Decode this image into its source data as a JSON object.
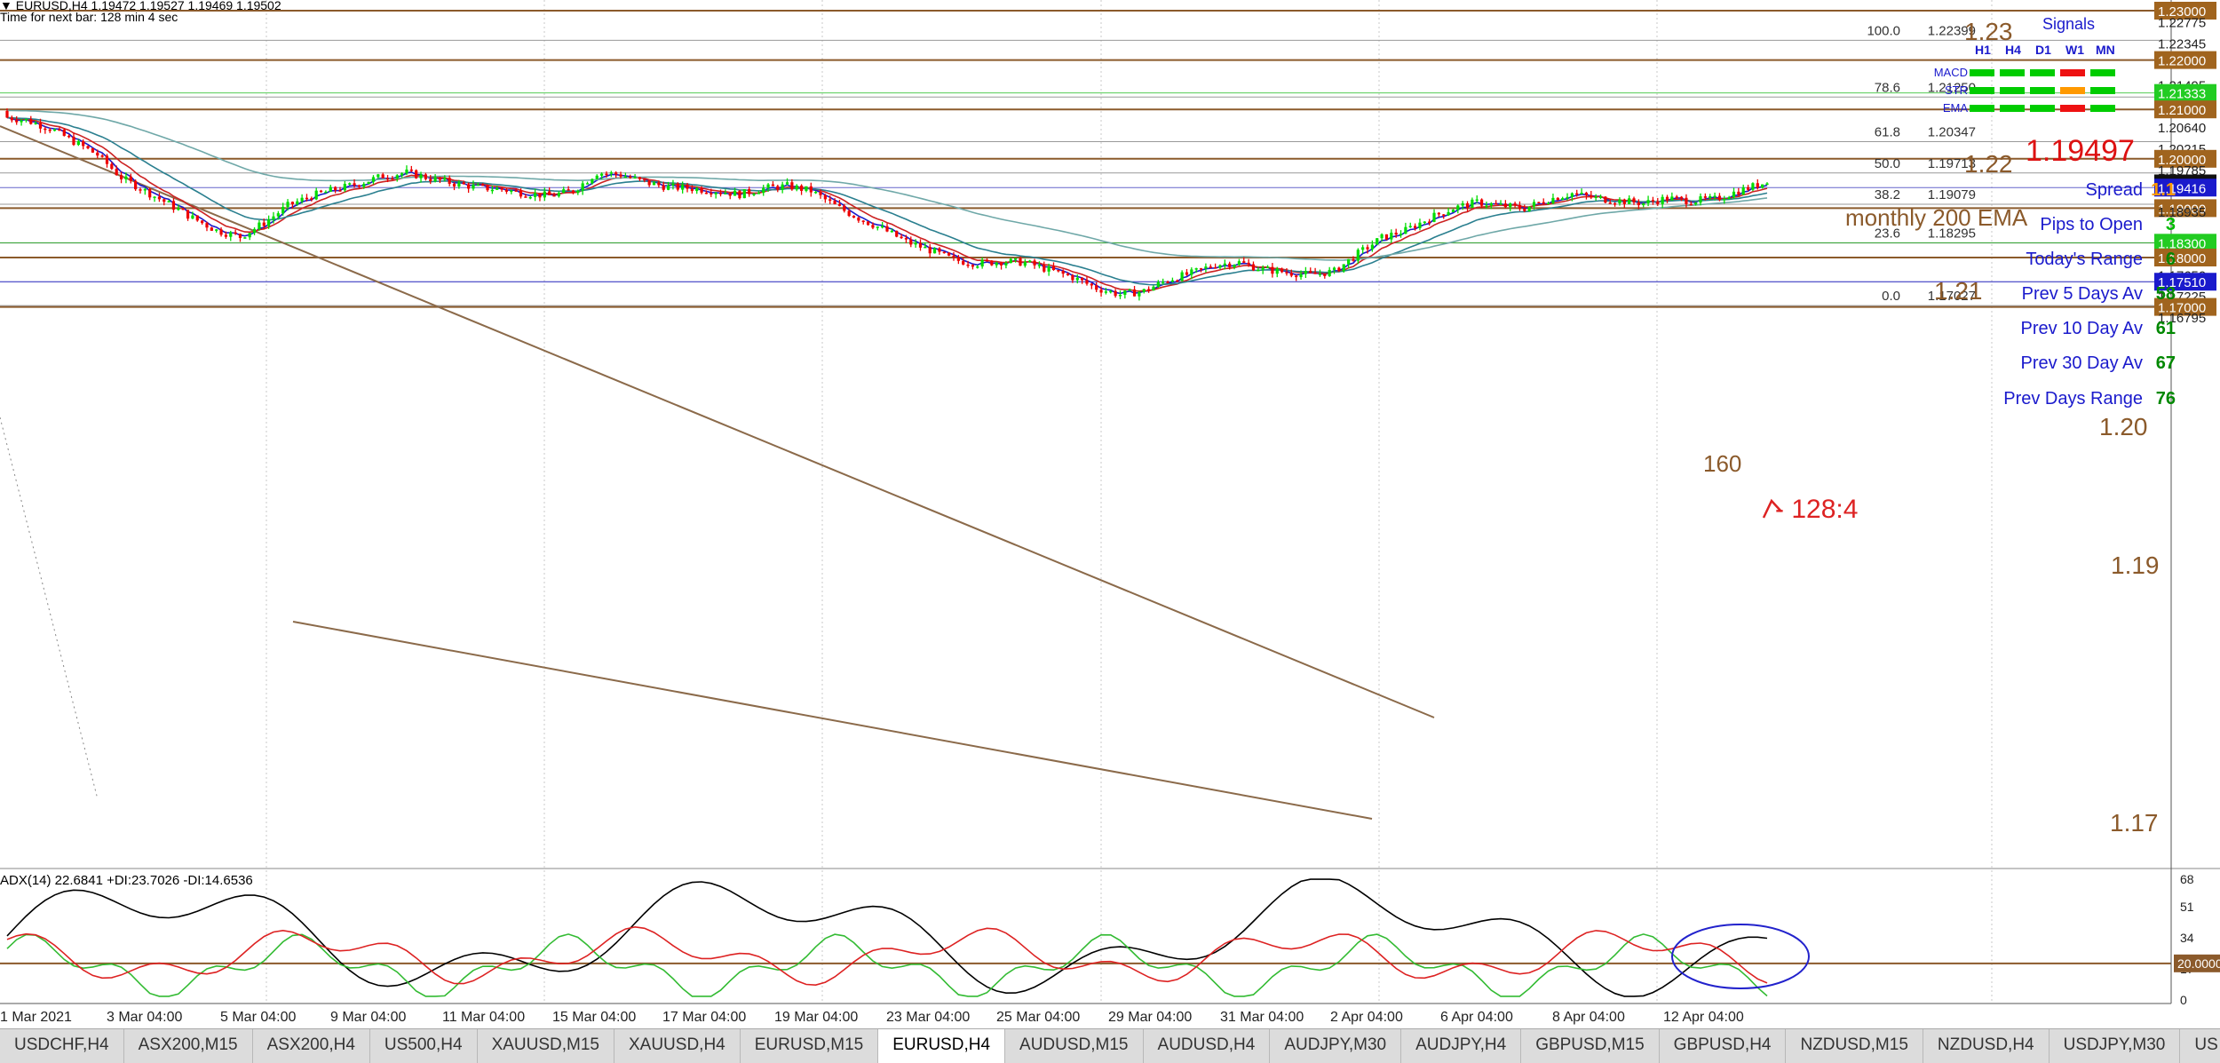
{
  "header": {
    "symbol_line": "EURUSD,H4  1.19472 1.19527 1.19469 1.19502",
    "timer": "Time for next bar: 128 min 4 sec"
  },
  "price_axis": {
    "ticks": [
      "1.23000",
      "1.22775",
      "1.22345",
      "1.22000",
      "1.21495",
      "1.21333",
      "1.21065",
      "1.21000",
      "1.20640",
      "1.20215",
      "1.20000",
      "1.19785",
      "1.19502",
      "1.19416",
      "1.19000",
      "1.18935",
      "1.18300",
      "1.18000",
      "1.17650",
      "1.17510",
      "1.17225",
      "1.17000",
      "1.16795"
    ],
    "boxes": [
      {
        "label": "1.23000",
        "style": "brown"
      },
      {
        "label": "1.22000",
        "style": "brown"
      },
      {
        "label": "1.21333",
        "style": "green"
      },
      {
        "label": "1.21000",
        "style": "brown"
      },
      {
        "label": "1.20000",
        "style": "brown"
      },
      {
        "label": "1.19502",
        "style": "black"
      },
      {
        "label": "1.19416",
        "style": "blue"
      },
      {
        "label": "1.19000",
        "style": "brown"
      },
      {
        "label": "1.18300",
        "style": "green"
      },
      {
        "label": "1.18000",
        "style": "brown"
      },
      {
        "label": "1.17510",
        "style": "blue"
      },
      {
        "label": "1.17000",
        "style": "brown"
      }
    ],
    "plain": [
      "1.22775",
      "1.22345",
      "1.21495",
      "1.21065",
      "1.20640",
      "1.20215",
      "1.19785",
      "1.18935",
      "1.17650",
      "1.17225",
      "1.16795"
    ]
  },
  "levels": {
    "round": [
      "1.23",
      "1.22",
      "1.21",
      "1.20",
      "1.19",
      "1.17"
    ],
    "fib": [
      {
        "ratio": "100.0",
        "price": "1.22399"
      },
      {
        "ratio": "78.6",
        "price": "1.21250"
      },
      {
        "ratio": "61.8",
        "price": "1.20347"
      },
      {
        "ratio": "50.0",
        "price": "1.19713"
      },
      {
        "ratio": "38.2",
        "price": "1.19079"
      },
      {
        "ratio": "23.6",
        "price": "1.18295"
      },
      {
        "ratio": "0.0",
        "price": "1.17027"
      }
    ]
  },
  "annotations": {
    "ema_label": "monthly 200 EMA",
    "pips_160": "160",
    "countdown": "- 128:4",
    "bid_price": "1.19497"
  },
  "signals": {
    "title": "Signals",
    "timeframes": [
      "H1",
      "H4",
      "D1",
      "W1",
      "MN"
    ],
    "rows": [
      {
        "name": "MACD",
        "colors": [
          "#00cc00",
          "#00cc00",
          "#00cc00",
          "#ee1111",
          "#00cc00"
        ]
      },
      {
        "name": "STR",
        "colors": [
          "#00cc00",
          "#00cc00",
          "#00cc00",
          "#ff9900",
          "#00cc00"
        ]
      },
      {
        "name": "EMA",
        "colors": [
          "#00cc00",
          "#00cc00",
          "#00cc00",
          "#ee1111",
          "#00cc00"
        ]
      }
    ]
  },
  "stats": [
    {
      "label": "Spread",
      "value": "1.1",
      "value_color": "#ff9900"
    },
    {
      "label": "Pips to Open",
      "value": "3",
      "value_color": "#00bb00"
    },
    {
      "label": "Today's Range",
      "value": "6",
      "value_color": "#008800"
    },
    {
      "label": "Prev 5 Days Av",
      "value": "58",
      "value_color": "#008800"
    },
    {
      "label": "Prev 10 Day Av",
      "value": "61",
      "value_color": "#008800"
    },
    {
      "label": "Prev 30 Day Av",
      "value": "67",
      "value_color": "#008800"
    },
    {
      "label": "Prev Days Range",
      "value": "76",
      "value_color": "#008800"
    }
  ],
  "indicator": {
    "label": "ADX(14) 22.6841 +DI:23.7026 -DI:14.6536",
    "axis_ticks": [
      "68",
      "51",
      "34",
      "17",
      "0"
    ],
    "level_box": "20.0000"
  },
  "time_axis": {
    "labels": [
      "1 Mar 2021",
      "3 Mar 04:00",
      "5 Mar 04:00",
      "9 Mar 04:00",
      "11 Mar 04:00",
      "15 Mar 04:00",
      "17 Mar 04:00",
      "19 Mar 04:00",
      "23 Mar 04:00",
      "25 Mar 04:00",
      "29 Mar 04:00",
      "31 Mar 04:00",
      "2 Apr 04:00",
      "6 Apr 04:00",
      "8 Apr 04:00",
      "12 Apr 04:00"
    ]
  },
  "tabs": [
    {
      "label": "USDCHF,H4",
      "active": false
    },
    {
      "label": "ASX200,M15",
      "active": false
    },
    {
      "label": "ASX200,H4",
      "active": false
    },
    {
      "label": "US500,H4",
      "active": false
    },
    {
      "label": "XAUUSD,M15",
      "active": false
    },
    {
      "label": "XAUUSD,H4",
      "active": false
    },
    {
      "label": "EURUSD,M15",
      "active": false
    },
    {
      "label": "EURUSD,H4",
      "active": true
    },
    {
      "label": "AUDUSD,M15",
      "active": false
    },
    {
      "label": "AUDUSD,H4",
      "active": false
    },
    {
      "label": "AUDJPY,M30",
      "active": false
    },
    {
      "label": "AUDJPY,H4",
      "active": false
    },
    {
      "label": "GBPUSD,M15",
      "active": false
    },
    {
      "label": "GBPUSD,H4",
      "active": false
    },
    {
      "label": "NZDUSD,M15",
      "active": false
    },
    {
      "label": "NZDUSD,H4",
      "active": false
    },
    {
      "label": "USDJPY,M30",
      "active": false
    },
    {
      "label": "US",
      "active": false
    }
  ],
  "colors": {
    "bull": "#00dd00",
    "bear": "#ee0000",
    "round_level": "#8b5a2b",
    "fib_level": "#999999",
    "ema200": "#6fa8a8",
    "adx": "#000000",
    "plus_di": "#33bb33",
    "minus_di": "#dd2222"
  },
  "chart_data": {
    "type": "candlestick",
    "symbol": "EURUSD,H4",
    "ohlc_last": {
      "open": 1.19472,
      "high": 1.19527,
      "low": 1.19469,
      "close": 1.19502
    },
    "path_closes": [
      1.2085,
      1.2078,
      1.2062,
      1.2035,
      1.2008,
      1.1962,
      1.1935,
      1.1908,
      1.188,
      1.1855,
      1.1842,
      1.187,
      1.1905,
      1.1925,
      1.1938,
      1.195,
      1.1965,
      1.1972,
      1.196,
      1.195,
      1.1942,
      1.1938,
      1.193,
      1.1925,
      1.1935,
      1.1972,
      1.1968,
      1.1952,
      1.1943,
      1.194,
      1.1935,
      1.1928,
      1.194,
      1.1945,
      1.1935,
      1.1905,
      1.188,
      1.1858,
      1.1832,
      1.1815,
      1.1795,
      1.1788,
      1.1792,
      1.179,
      1.1775,
      1.176,
      1.1738,
      1.1725,
      1.1732,
      1.1755,
      1.1768,
      1.1786,
      1.179,
      1.1776,
      1.177,
      1.1765,
      1.1772,
      1.1808,
      1.184,
      1.1855,
      1.188,
      1.19,
      1.1912,
      1.1905,
      1.19,
      1.1918,
      1.193,
      1.192,
      1.1915,
      1.191,
      1.192,
      1.1915,
      1.1918,
      1.1935,
      1.195
    ]
  }
}
